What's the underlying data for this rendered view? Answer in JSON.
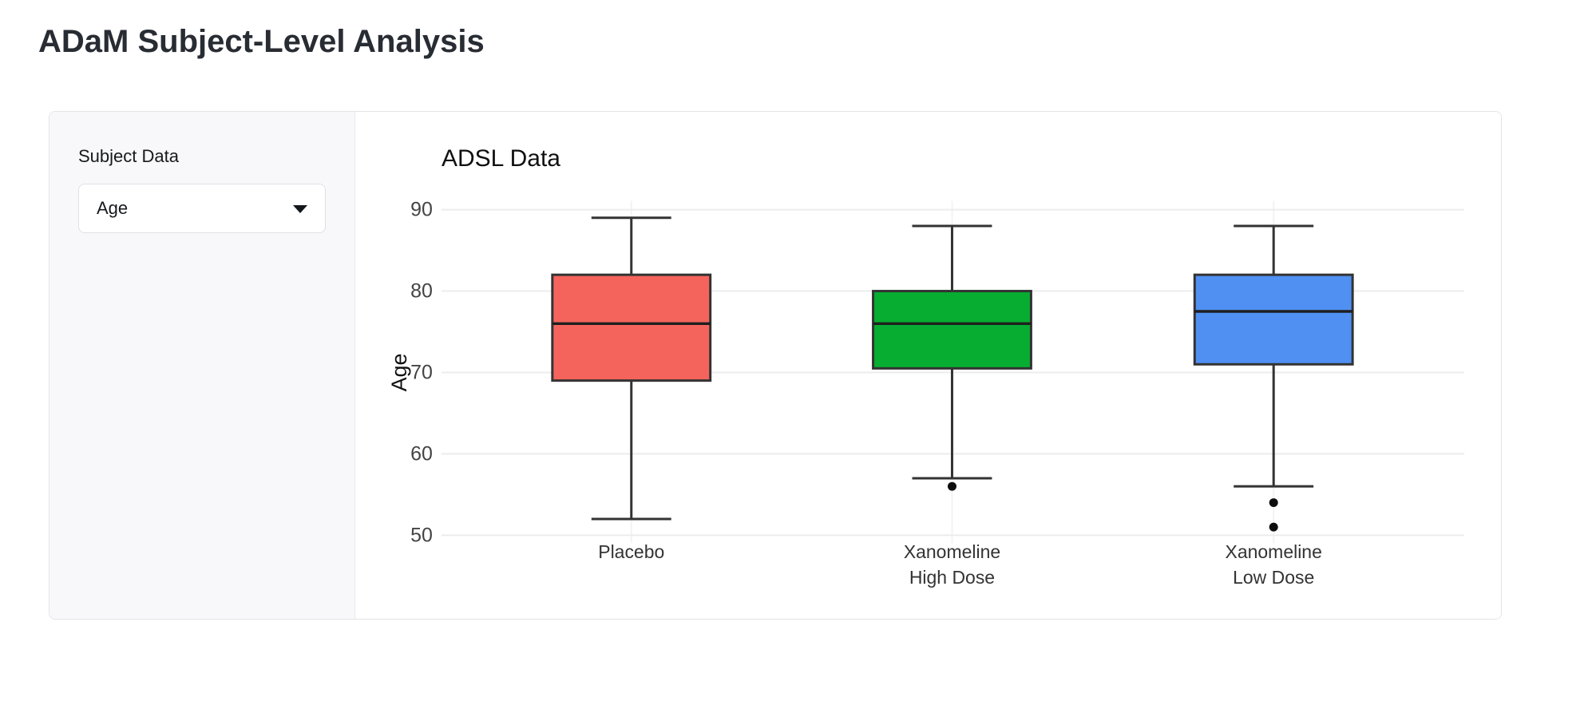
{
  "page": {
    "title": "ADaM Subject-Level Analysis"
  },
  "sidebar": {
    "label": "Subject Data",
    "select": {
      "value": "Age"
    }
  },
  "chart_data": {
    "type": "box",
    "title": "ADSL Data",
    "ylabel": "Age",
    "xlabel": "",
    "yticks": [
      50,
      60,
      70,
      80,
      90
    ],
    "ylim": [
      50,
      90
    ],
    "grid": "major-horizontal-and-category-vertical",
    "legend": false,
    "categories": [
      "Placebo",
      "Xanomeline High Dose",
      "Xanomeline Low Dose"
    ],
    "series": [
      {
        "name": "Placebo",
        "label_lines": [
          "Placebo"
        ],
        "color": "#f4645c",
        "whisker_low": 52,
        "q1": 69,
        "median": 76,
        "q3": 82,
        "whisker_high": 89,
        "outliers": []
      },
      {
        "name": "Xanomeline High Dose",
        "label_lines": [
          "Xanomeline",
          "High Dose"
        ],
        "color": "#07ad31",
        "whisker_low": 57,
        "q1": 70.5,
        "median": 76,
        "q3": 80,
        "whisker_high": 88,
        "outliers": [
          56
        ]
      },
      {
        "name": "Xanomeline Low Dose",
        "label_lines": [
          "Xanomeline",
          "Low Dose"
        ],
        "color": "#4f90f2",
        "whisker_low": 56,
        "q1": 71,
        "median": 77.5,
        "q3": 82,
        "whisker_high": 88,
        "outliers": [
          54,
          51
        ]
      }
    ],
    "colors": {
      "box_border": "#333333",
      "median_line": "#1f1f1f",
      "outlier": "#0d0d0d",
      "gridline": "#ececec",
      "vertical_gridline": "#f3f3f3",
      "tick_text": "#444444",
      "label_text": "#333333",
      "axis_title_text": "#111111"
    }
  }
}
